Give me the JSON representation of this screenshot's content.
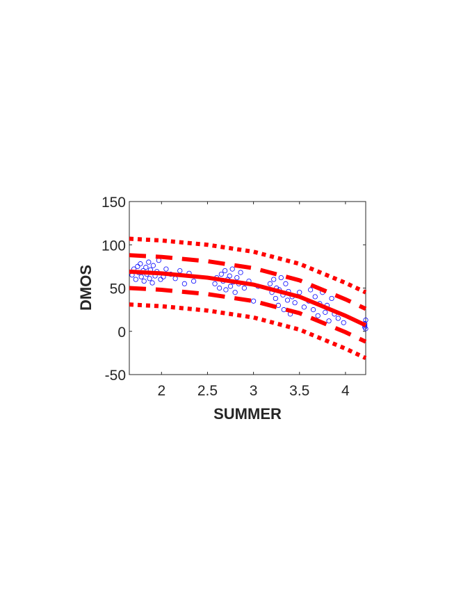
{
  "chart_data": {
    "type": "scatter",
    "xlabel": "SUMMER",
    "ylabel": "DMOS",
    "xlim": [
      1.65,
      4.22
    ],
    "ylim": [
      -50,
      150
    ],
    "xticks": [
      2,
      2.5,
      3,
      3.5,
      4
    ],
    "yticks": [
      -50,
      0,
      50,
      100,
      150
    ],
    "series": [
      {
        "color": "#0000ff",
        "style": "markers",
        "x": [
          1.68,
          1.7,
          1.72,
          1.74,
          1.75,
          1.77,
          1.78,
          1.8,
          1.81,
          1.83,
          1.84,
          1.86,
          1.87,
          1.88,
          1.9,
          1.91,
          1.93,
          1.95,
          1.97,
          1.99,
          2.02,
          2.05,
          2.1,
          2.15,
          2.2,
          2.25,
          2.3,
          2.35,
          2.58,
          2.6,
          2.63,
          2.65,
          2.67,
          2.69,
          2.7,
          2.72,
          2.74,
          2.75,
          2.77,
          2.78,
          2.8,
          2.82,
          2.84,
          2.86,
          2.9,
          2.95,
          3.0,
          3.05,
          3.18,
          3.2,
          3.22,
          3.24,
          3.25,
          3.27,
          3.28,
          3.3,
          3.32,
          3.33,
          3.35,
          3.37,
          3.38,
          3.4,
          3.42,
          3.45,
          3.5,
          3.55,
          3.6,
          3.62,
          3.65,
          3.67,
          3.7,
          3.72,
          3.75,
          3.78,
          3.8,
          3.82,
          3.85,
          3.88,
          3.92,
          3.98,
          4.21,
          4.21,
          4.22,
          4.22,
          4.21
        ],
        "y": [
          65,
          72,
          60,
          75,
          68,
          78,
          63,
          70,
          58,
          74,
          66,
          80,
          61,
          71,
          56,
          76,
          64,
          69,
          82,
          60,
          63,
          72,
          66,
          61,
          70,
          55,
          67,
          58,
          55,
          62,
          50,
          66,
          58,
          70,
          48,
          60,
          64,
          52,
          72,
          57,
          45,
          62,
          55,
          68,
          50,
          58,
          35,
          52,
          55,
          45,
          60,
          38,
          50,
          30,
          48,
          62,
          42,
          25,
          55,
          36,
          46,
          20,
          40,
          33,
          45,
          28,
          35,
          48,
          25,
          40,
          18,
          32,
          45,
          22,
          30,
          12,
          38,
          20,
          15,
          10,
          5,
          9,
          13,
          3,
          7
        ]
      },
      {
        "color": "#ff0000",
        "style": "solid",
        "x": [
          1.65,
          2,
          2.5,
          3,
          3.5,
          4,
          4.22
        ],
        "y": [
          69,
          67,
          62,
          54,
          40,
          18,
          7
        ]
      },
      {
        "color": "#ff0000",
        "style": "dashed",
        "x": [
          1.65,
          2,
          2.5,
          3,
          3.5,
          4,
          4.22
        ],
        "y": [
          88,
          86,
          81,
          73,
          59,
          37,
          26
        ]
      },
      {
        "color": "#ff0000",
        "style": "dashed",
        "x": [
          1.65,
          2,
          2.5,
          3,
          3.5,
          4,
          4.22
        ],
        "y": [
          50,
          48,
          43,
          35,
          21,
          -1,
          -12
        ]
      },
      {
        "color": "#ff0000",
        "style": "dotted",
        "x": [
          1.65,
          2,
          2.5,
          3,
          3.5,
          4,
          4.22
        ],
        "y": [
          107,
          105,
          100,
          92,
          78,
          56,
          45
        ]
      },
      {
        "color": "#ff0000",
        "style": "dotted",
        "x": [
          1.65,
          2,
          2.5,
          3,
          3.5,
          4,
          4.22
        ],
        "y": [
          31,
          29,
          24,
          16,
          2,
          -20,
          -31
        ]
      }
    ]
  }
}
